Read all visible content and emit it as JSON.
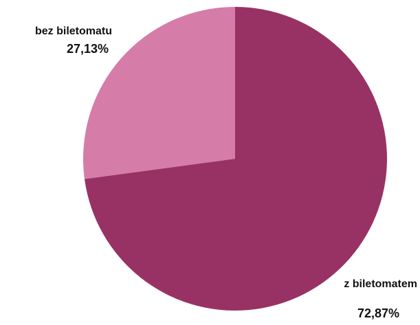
{
  "chart_data": {
    "type": "pie",
    "slices": [
      {
        "label": "z biletomatem",
        "value": 72.87,
        "display_value": "72,87%",
        "color": "#983264"
      },
      {
        "label": "bez biletomatu",
        "value": 27.13,
        "display_value": "27,13%",
        "color": "#d57ca8"
      }
    ],
    "start_angle_deg": 0,
    "direction": "clockwise"
  },
  "colors": {
    "background": "#ffffff",
    "label_text": "#111111"
  }
}
